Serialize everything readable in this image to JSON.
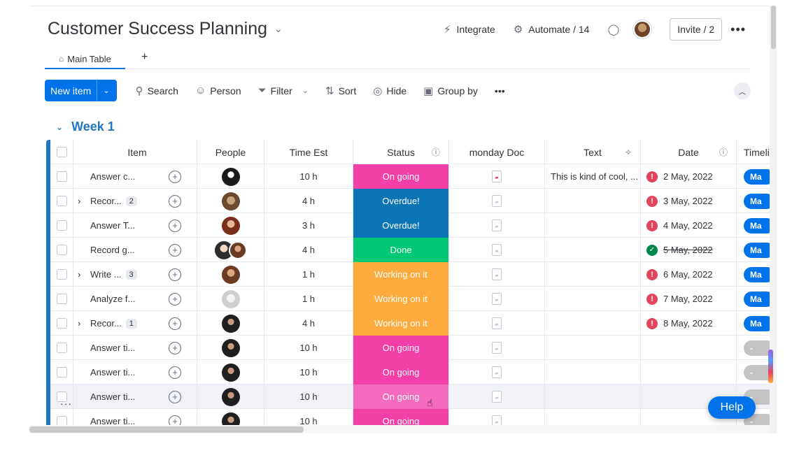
{
  "board": {
    "title": "Customer Success Planning",
    "title_chevron": "⌄"
  },
  "top_actions": {
    "integrate": "Integrate",
    "automate": "Automate / 14",
    "invite": "Invite / 2",
    "more": "•••"
  },
  "tabs": {
    "main": "Main Table",
    "add": "+"
  },
  "toolbar": {
    "new_item": "New item",
    "search": "Search",
    "person": "Person",
    "filter": "Filter",
    "sort": "Sort",
    "hide": "Hide",
    "group_by": "Group by",
    "more": "•••"
  },
  "group": {
    "title": "Week 1",
    "color": "#1f76c2"
  },
  "columns": {
    "item": "Item",
    "people": "People",
    "time": "Time Est",
    "status": "Status",
    "doc": "monday Doc",
    "text": "Text",
    "date": "Date",
    "timeline": "Timelin"
  },
  "status_colors": {
    "On going": "#f33fa8",
    "Overdue!": "#0b74b5",
    "Done": "#00c875",
    "Working on it": "#fdab3d"
  },
  "rows": [
    {
      "item": "Answer c...",
      "expand": "",
      "count": "",
      "time": "10 h",
      "status": "On going",
      "text": "This is kind of cool, ...",
      "date": "2 May, 2022",
      "date_state": "alert",
      "timeline": "Ma"
    },
    {
      "item": "Recor...",
      "expand": "›",
      "count": "2",
      "time": "4 h",
      "status": "Overdue!",
      "text": "",
      "date": "3 May, 2022",
      "date_state": "alert",
      "timeline": "Ma"
    },
    {
      "item": "Answer T...",
      "expand": "",
      "count": "",
      "time": "3 h",
      "status": "Overdue!",
      "text": "",
      "date": "4 May, 2022",
      "date_state": "alert",
      "timeline": "Ma"
    },
    {
      "item": "Record g...",
      "expand": "",
      "count": "",
      "time": "4 h",
      "status": "Done",
      "text": "",
      "date": "5 May, 2022",
      "date_state": "done",
      "timeline": "Ma"
    },
    {
      "item": "Write ...",
      "expand": "›",
      "count": "3",
      "time": "1 h",
      "status": "Working on it",
      "text": "",
      "date": "6 May, 2022",
      "date_state": "alert",
      "timeline": "Ma"
    },
    {
      "item": "Analyze f...",
      "expand": "",
      "count": "",
      "time": "1 h",
      "status": "Working on it",
      "text": "",
      "date": "7 May, 2022",
      "date_state": "alert",
      "timeline": "Ma"
    },
    {
      "item": "Recor...",
      "expand": "›",
      "count": "1",
      "time": "4 h",
      "status": "Working on it",
      "text": "",
      "date": "8 May, 2022",
      "date_state": "alert",
      "timeline": "Ma"
    },
    {
      "item": "Answer ti...",
      "expand": "",
      "count": "",
      "time": "10 h",
      "status": "On going",
      "text": "",
      "date": "",
      "date_state": "",
      "timeline": "-"
    },
    {
      "item": "Answer ti...",
      "expand": "",
      "count": "",
      "time": "10 h",
      "status": "On going",
      "text": "",
      "date": "",
      "date_state": "",
      "timeline": "-"
    },
    {
      "item": "Answer ti...",
      "expand": "",
      "count": "",
      "time": "10 h",
      "status": "On going",
      "text": "",
      "date": "",
      "date_state": "",
      "timeline": "-"
    },
    {
      "item": "Answer ti...",
      "expand": "",
      "count": "",
      "time": "10 h",
      "status": "On going",
      "text": "",
      "date": "",
      "date_state": "",
      "timeline": "-"
    }
  ],
  "help": "Help",
  "row_menu": "···"
}
